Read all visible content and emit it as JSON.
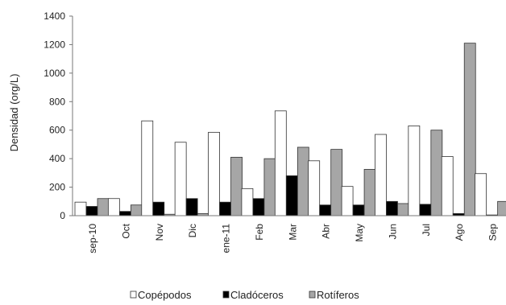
{
  "chart_data": {
    "type": "bar",
    "title": "",
    "xlabel": "",
    "ylabel": "Densidad (org/L)",
    "ylim": [
      0,
      1400
    ],
    "yticks": [
      "0",
      "200",
      "400",
      "600",
      "800",
      "1000",
      "1200",
      "1400"
    ],
    "grid": false,
    "legend_position": "bottom",
    "categories": [
      "sep-10",
      "Oct",
      "Nov",
      "Dic",
      "ene-11",
      "Feb",
      "Mar",
      "Abr",
      "May",
      "Jun",
      "Jul",
      "Ago",
      "Sep"
    ],
    "series": [
      {
        "name": "Copépodos",
        "color": "#ffffff",
        "values": [
          95,
          120,
          665,
          515,
          585,
          190,
          735,
          385,
          205,
          570,
          630,
          415,
          295
        ]
      },
      {
        "name": "Cladóceros",
        "color": "#000000",
        "values": [
          65,
          30,
          95,
          120,
          95,
          120,
          280,
          75,
          75,
          100,
          80,
          15,
          5
        ]
      },
      {
        "name": "Rotíferos",
        "color": "#a6a6a6",
        "values": [
          120,
          75,
          10,
          15,
          410,
          400,
          480,
          465,
          325,
          85,
          600,
          1210,
          100
        ]
      }
    ]
  }
}
